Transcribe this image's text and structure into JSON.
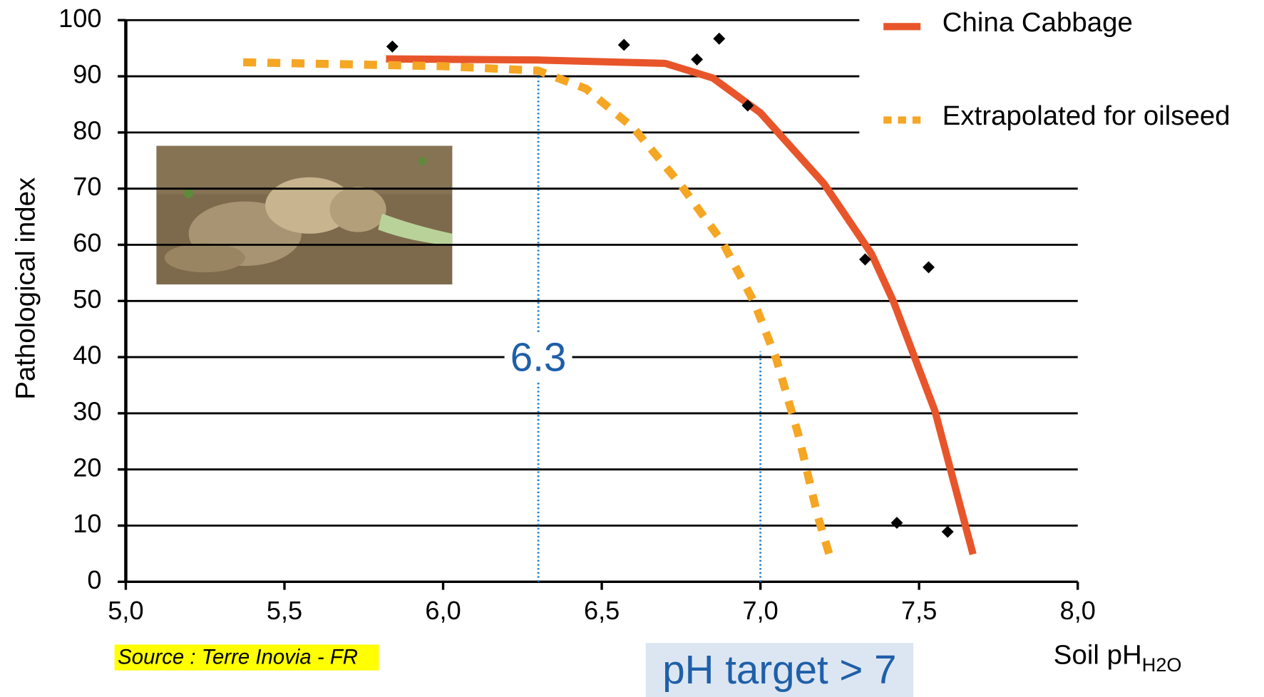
{
  "chart_data": {
    "type": "line",
    "y_label": "Pathological index",
    "x_label": "Soil pH",
    "x_label_subscript": "H2O",
    "xlim": [
      5.0,
      8.0
    ],
    "xticks": [
      {
        "value": 5.0,
        "label": "5,0"
      },
      {
        "value": 5.5,
        "label": "5,5"
      },
      {
        "value": 6.0,
        "label": "6,0"
      },
      {
        "value": 6.5,
        "label": "6,5"
      },
      {
        "value": 7.0,
        "label": "7,0"
      },
      {
        "value": 7.5,
        "label": "7,5"
      },
      {
        "value": 8.0,
        "label": "8,0"
      }
    ],
    "ylim": [
      0,
      100
    ],
    "yticks": [
      0,
      10,
      20,
      30,
      40,
      50,
      60,
      70,
      80,
      90,
      100
    ],
    "grid": true,
    "legend": "top-right",
    "series": [
      {
        "name": "China Cabbage",
        "type": "line",
        "color": "#e8552a",
        "dashed": false,
        "x": [
          5.82,
          6.3,
          6.7,
          6.85,
          7.0,
          7.2,
          7.35,
          7.42,
          7.55,
          7.67
        ],
        "values": [
          93.1,
          92.9,
          92.3,
          89.7,
          83.5,
          70.9,
          58.4,
          49.8,
          30.4,
          4.9
        ]
      },
      {
        "name": "Extrapolated for oilseed",
        "type": "line",
        "color": "#f5a623",
        "dashed": true,
        "x": [
          5.37,
          6.0,
          6.3,
          6.45,
          6.6,
          6.75,
          6.88,
          6.98,
          7.05,
          7.12,
          7.18,
          7.22
        ],
        "values": [
          92.5,
          91.8,
          91.0,
          87.8,
          80.8,
          70.6,
          60.5,
          49.8,
          39.7,
          26.1,
          11.8,
          4.3
        ]
      },
      {
        "type": "scatter",
        "color": "#000000",
        "x": [
          5.84,
          6.57,
          6.8,
          6.87,
          6.96,
          7.33,
          7.53,
          7.43,
          7.59
        ],
        "values": [
          95.3,
          95.6,
          93.0,
          96.7,
          84.8,
          57.4,
          56.0,
          10.5,
          8.9
        ]
      }
    ],
    "reference_lines": [
      {
        "x": 6.3,
        "top": 91,
        "label": "6.3"
      },
      {
        "x": 7.0,
        "top": 41
      }
    ],
    "target_note": "pH target > 7",
    "source": "Source : Terre Inovia - FR"
  }
}
